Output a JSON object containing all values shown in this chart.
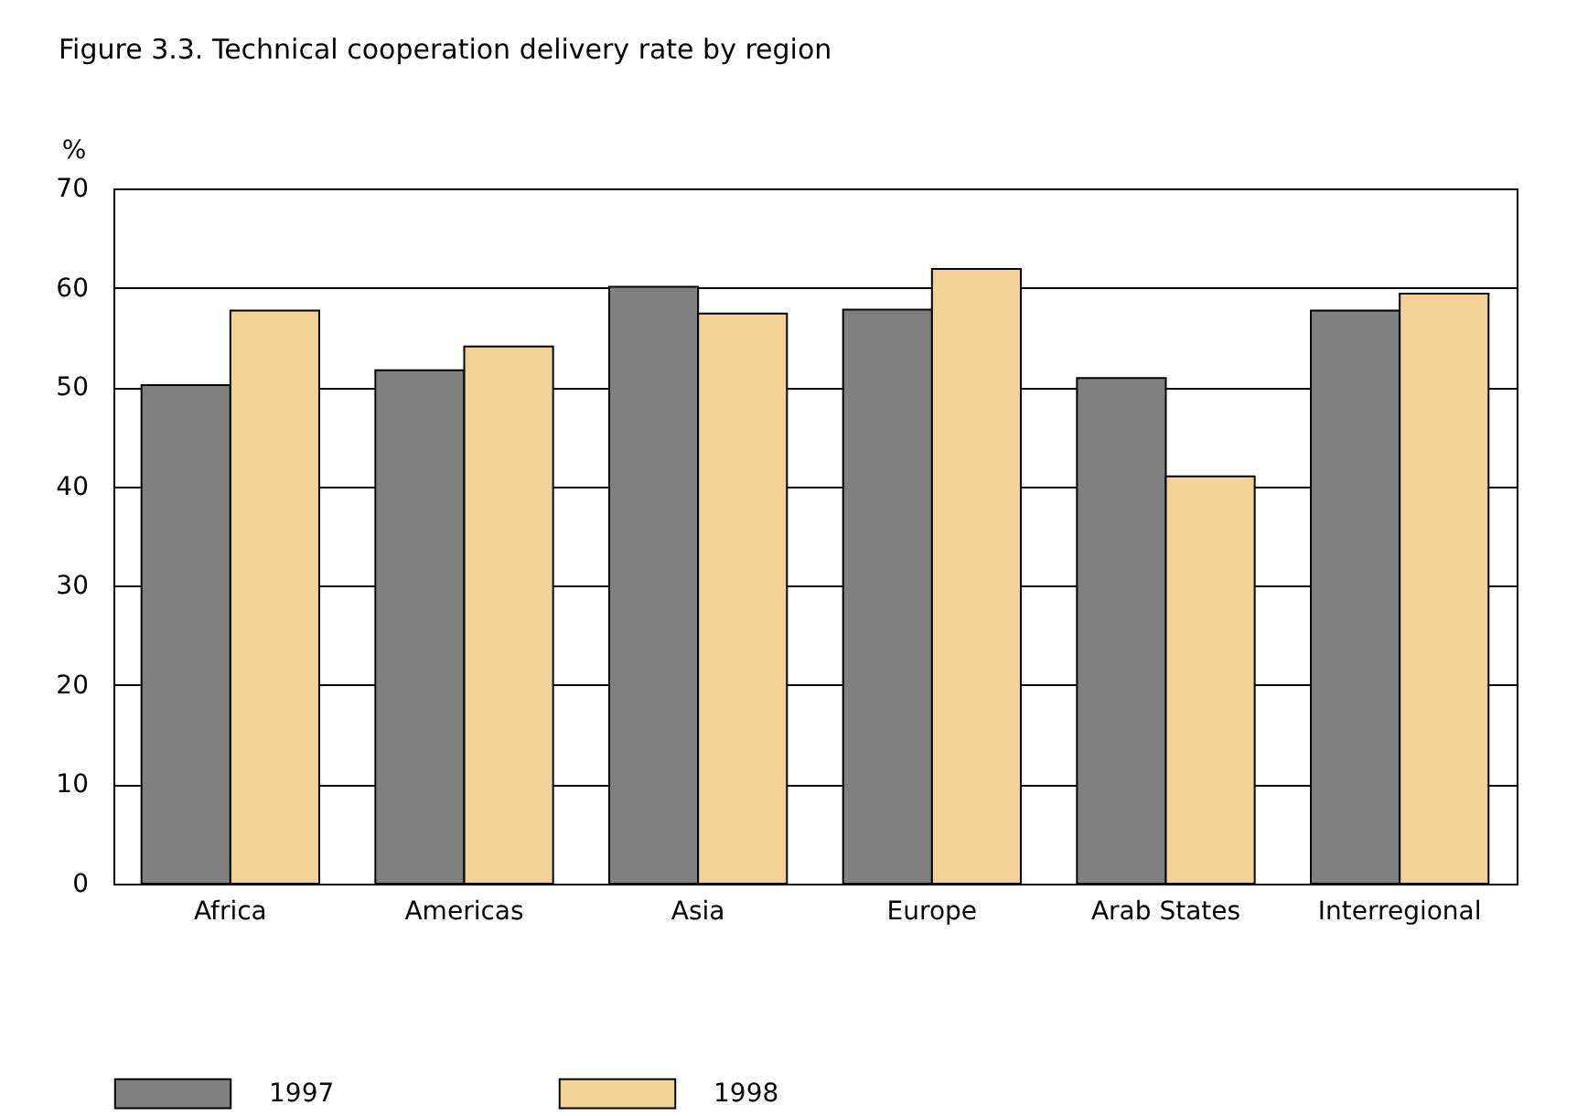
{
  "chart_data": {
    "type": "bar",
    "title": "Figure 3.3. Technical cooperation delivery rate by region",
    "ylabel": "%",
    "categories": [
      "Africa",
      "Americas",
      "Asia",
      "Europe",
      "Arab States",
      "Interregional"
    ],
    "series": [
      {
        "name": "1997",
        "color": "#808080",
        "values": [
          50.2,
          51.7,
          60.1,
          57.8,
          50.9,
          57.7
        ]
      },
      {
        "name": "1998",
        "color": "#f3d296",
        "values": [
          57.7,
          54.1,
          57.4,
          61.9,
          41.0,
          59.4
        ]
      }
    ],
    "ylim": [
      0,
      70
    ],
    "yticks": [
      0,
      10,
      20,
      30,
      40,
      50,
      60,
      70
    ],
    "grid": "y",
    "legend": "bottom"
  }
}
